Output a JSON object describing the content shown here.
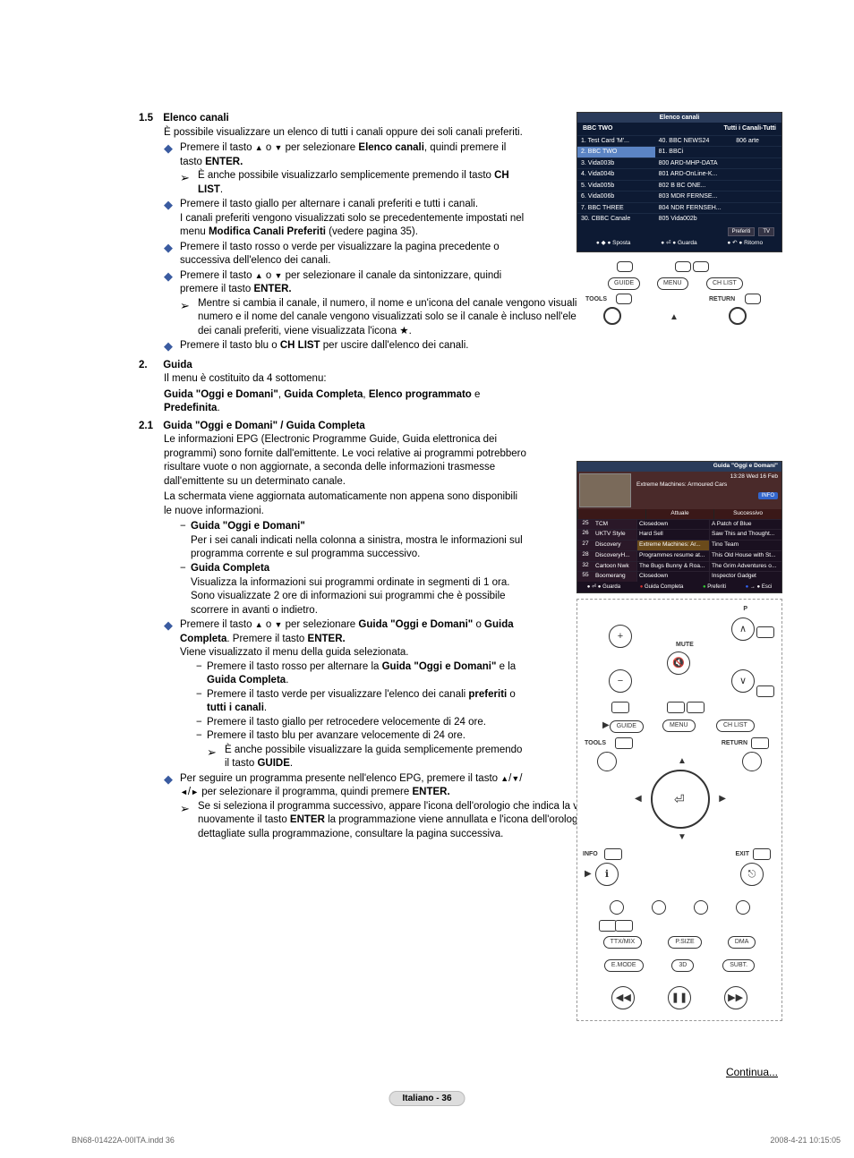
{
  "sec15": {
    "num": "1.5",
    "title": "Elenco canali",
    "intro": "È possibile visualizzare un elenco di tutti i canali oppure dei soli canali preferiti.",
    "b1a": "Premere il tasto ",
    "b1b": " per selezionare ",
    "b1c": "Elenco canali",
    "b1d": ", quindi premere il tasto ",
    "b1e": "ENTER.",
    "b1_or": " o ",
    "b1arrow": "È anche possibile visualizzarlo semplicemente premendo il tasto ",
    "b1chlist": "CH LIST",
    "b2": "Premere il tasto giallo per alternare i canali preferiti e tutti i canali.",
    "b2p": "I canali preferiti vengono visualizzati solo se precedentemente impostati nel menu ",
    "b2p_b": "Modifica Canali Preferiti",
    "b2p_c": " (vedere pagina 35).",
    "b3": "Premere il tasto rosso o verde per visualizzare la pagina precedente o successiva dell'elenco dei canali.",
    "b4a": "Premere il tasto ",
    "b4b": " per selezionare il canale da sintonizzare, quindi premere il tasto ",
    "b4c": "ENTER.",
    "b4arrow": "Mentre si cambia il canale, il numero, il nome e un'icona del canale vengono visualizzati nell'angolo superiore sinistro. Il numero e il nome del canale vengono visualizzati solo se il canale è incluso nell'elenco di tutti i canali. Se invece è uno dei canali preferiti, viene visualizzata l'icona ",
    "b5a": "Premere il tasto blu o ",
    "b5b": "CH LIST",
    "b5c": " per uscire dall'elenco dei canali."
  },
  "sec2": {
    "num": "2.",
    "title": "Guida",
    "intro": "Il menu è costituito da 4 sottomenu:",
    "list_a": "Guida \"Oggi e Domani\"",
    "list_b": "Guida Completa",
    "list_c": "Elenco programmato",
    "list_d": "Predefinita",
    "sep_comma": ", ",
    "sep_e": " e "
  },
  "sec21": {
    "num": "2.1",
    "title": "Guida \"Oggi e Domani\" / Guida Completa",
    "p1": "Le informazioni EPG (Electronic Programme Guide, Guida elettronica dei programmi) sono fornite dall'emittente. Le voci relative ai programmi potrebbero risultare vuote o non aggiornate, a seconda delle informazioni trasmesse dall'emittente su un determinato canale.",
    "p2": "La schermata viene aggiornata automaticamente non appena sono disponibili le nuove informazioni.",
    "d1_t": "Guida \"Oggi e Domani\"",
    "d1_b": "Per i sei canali indicati nella colonna a sinistra, mostra le informazioni sul programma corrente e sul programma successivo.",
    "d2_t": "Guida Completa",
    "d2_b": "Visualizza la informazioni sui programmi ordinate in segmenti di 1 ora. Sono visualizzate 2 ore di informazioni sui programmi che è possibile scorrere in avanti o indietro.",
    "b1a": "Premere il tasto ",
    "b1b": " per selezionare ",
    "b1c": "Guida \"Oggi e Domani\"",
    "b1d": " o ",
    "b1e": "Guida Completa",
    "b1f": ". Premere il tasto ",
    "b1g": "ENTER.",
    "b1h": "Viene visualizzato il menu della guida selezionata.",
    "s1a": "Premere il tasto rosso per alternare la ",
    "s1b": "Guida \"Oggi e Domani\"",
    "s1c": " e la ",
    "s1d": "Guida Completa",
    "s2a": "Premere il tasto verde per visualizzare l'elenco dei canali ",
    "s2b": "preferiti",
    "s2c": " o ",
    "s2d": "tutti i canali",
    "s3": "Premere il tasto giallo per retrocedere velocemente di 24 ore.",
    "s4": "Premere il tasto blu per avanzare velocemente di 24 ore.",
    "s4arrow": "È anche possibile visualizzare la guida semplicemente premendo il tasto ",
    "s4guide": "GUIDE",
    "b2a": "Per seguire un programma presente nell'elenco EPG, premere il tasto ",
    "b2b": " per selezionare il programma, quindi premere ",
    "b2c": "ENTER.",
    "b2arrow_a": "Se si seleziona il programma successivo, appare l'icona dell'orologio che indica la visione programmata. Premendo nuovamente il tasto ",
    "b2arrow_b": "ENTER",
    "b2arrow_c": " la programmazione viene annullata e l'icona dell'orologio scompare. Per informazioni dettagliate sulla programmazione, consultare la pagina successiva."
  },
  "channel_list": {
    "title": "Elenco canali",
    "current": "BBC TWO",
    "right": "Tutti i Canali-Tutti",
    "colA": [
      "1.  Test Card 'M'...",
      "2.  BBC TWO",
      "3.  Vida003b",
      "4.  Vida004b",
      "5.  Vida005b",
      "6.  Vida006b",
      "7.  BBC THREE",
      "30. CBBC Canale"
    ],
    "colB": [
      "40.  BBC NEWS24",
      "81.  BBCi",
      "800 ARD-MHP-DATA",
      "801 ARD-OnLine-K...",
      "802 B BC ONE...",
      "803 MDR FERNSE...",
      "804 NDR FERNSEH...",
      "805 Vida002b"
    ],
    "colC": [
      "806 arte"
    ],
    "pref": "Preferiti",
    "tv": "TV",
    "a1": "Sposta",
    "a2": "Guarda",
    "a3": "Ritorno"
  },
  "guide": {
    "title": "Guida \"Oggi e Domani\"",
    "time": "13:28  Wed 16 Feb",
    "prog": "Extreme Machines: Armoured Cars",
    "info": "INFO",
    "h1": "Attuale",
    "h2": "Successivo",
    "rows": [
      {
        "n": "25",
        "ch": "TCM",
        "a": "Closedown",
        "b": "A Patch of Blue"
      },
      {
        "n": "26",
        "ch": "UKTV Style",
        "a": "Hard Sell",
        "b": "Saw This and Thought..."
      },
      {
        "n": "27",
        "ch": "Discovery",
        "a": "Extreme Machines: Ar...",
        "b": "Tino Team"
      },
      {
        "n": "28",
        "ch": "DiscoveryH...",
        "a": "Programmes resume at...",
        "b": "This Old House with St..."
      },
      {
        "n": "32",
        "ch": "Cartoon Nwk",
        "a": "The Bugs Bunny & Roa...",
        "b": "The Grim Adventures o..."
      },
      {
        "n": "55",
        "ch": "Boomerang",
        "a": "Closedown",
        "b": "Inspector Gadget"
      }
    ],
    "f1": "Guarda",
    "f2": "Guida Completa",
    "f3": "Preferiti",
    "f4": "Esci"
  },
  "remote": {
    "guide": "GUIDE",
    "menu": "MENU",
    "chlist": "CH LIST",
    "tools": "TOOLS",
    "return": "RETURN",
    "mute": "MUTE",
    "info": "INFO",
    "exit": "EXIT",
    "p": "P",
    "ttx": "TTX/MIX",
    "psize": "P.SIZE",
    "dma": "DMA",
    "emode": "E.MODE",
    "d3": "3D",
    "subt": "SUBT."
  },
  "footer": {
    "continua": "Continua...",
    "page": "Italiano - 36",
    "file": "BN68-01422A-00ITA.indd   36",
    "date": "2008-4-21   10:15:05"
  }
}
